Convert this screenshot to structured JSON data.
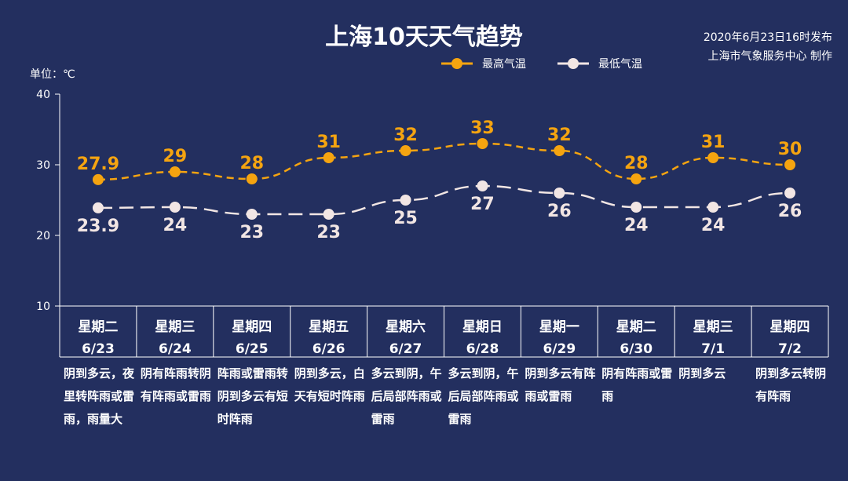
{
  "title": "上海10天天气趋势",
  "publish": {
    "line1": "2020年6月23日16时发布",
    "line2": "上海市气象服务中心 制作"
  },
  "unit_label": "单位：℃",
  "colors": {
    "background": "#232f5f",
    "high": "#f5a410",
    "low": "#f2e6e4",
    "axis": "#ffffff"
  },
  "chart_data": {
    "type": "line",
    "title": "上海10天天气趋势",
    "ylabel": "单位：℃",
    "ylim": [
      10,
      40
    ],
    "yticks": [
      10,
      20,
      30,
      40
    ],
    "legend_position": "top-right",
    "categories": [
      {
        "weekday": "星期二",
        "date": "6/23"
      },
      {
        "weekday": "星期三",
        "date": "6/24"
      },
      {
        "weekday": "星期四",
        "date": "6/25"
      },
      {
        "weekday": "星期五",
        "date": "6/26"
      },
      {
        "weekday": "星期六",
        "date": "6/27"
      },
      {
        "weekday": "星期日",
        "date": "6/28"
      },
      {
        "weekday": "星期一",
        "date": "6/29"
      },
      {
        "weekday": "星期二",
        "date": "6/30"
      },
      {
        "weekday": "星期三",
        "date": "7/1"
      },
      {
        "weekday": "星期四",
        "date": "7/2"
      }
    ],
    "series": [
      {
        "name": "最高气温",
        "color": "#f5a410",
        "values": [
          27.9,
          29,
          28,
          31,
          32,
          33,
          32,
          28,
          31,
          30
        ],
        "labels": [
          "27.9",
          "29",
          "28",
          "31",
          "32",
          "33",
          "32",
          "28",
          "31",
          "30"
        ]
      },
      {
        "name": "最低气温",
        "color": "#f2e6e4",
        "values": [
          23.9,
          24,
          23,
          23,
          25,
          27,
          26,
          24,
          24,
          26
        ],
        "labels": [
          "23.9",
          "24",
          "23",
          "23",
          "25",
          "27",
          "26",
          "24",
          "24",
          "26"
        ]
      }
    ]
  },
  "forecasts": [
    "阴到多云，夜里转阵雨或雷雨，雨量大",
    "阴有阵雨转阴有阵雨或雷雨",
    "阵雨或雷雨转阴到多云有短时阵雨",
    "阴到多云，白天有短时阵雨",
    "多云到阴，午后局部阵雨或雷雨",
    "多云到阴，午后局部阵雨或雷雨",
    "阴到多云有阵雨或雷雨",
    "阴有阵雨或雷雨",
    "阴到多云",
    "阴到多云转阴有阵雨"
  ]
}
